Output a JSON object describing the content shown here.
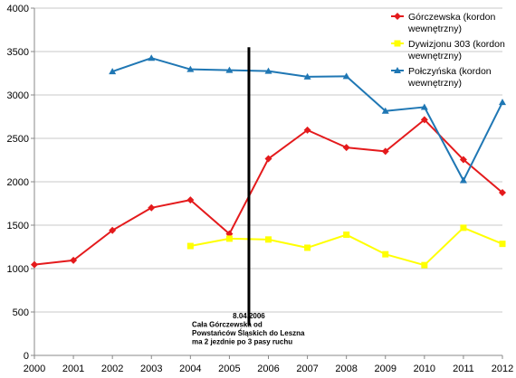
{
  "chart_data": {
    "type": "line",
    "x": [
      2000,
      2001,
      2002,
      2003,
      2004,
      2005,
      2006,
      2007,
      2008,
      2009,
      2010,
      2011,
      2012
    ],
    "ylim": [
      0,
      4000
    ],
    "yticks": [
      0,
      500,
      1000,
      1500,
      2000,
      2500,
      3000,
      3500,
      4000
    ],
    "grid": true,
    "legend_position": "top-right",
    "series": [
      {
        "name_lines": [
          "Górczewska (kordon",
          "wewnętrzny)"
        ],
        "color": "#e41a1c",
        "marker": "diamond",
        "values": [
          1045,
          1095,
          1440,
          1700,
          1790,
          1400,
          2265,
          2595,
          2395,
          2350,
          2715,
          2255,
          1875
        ]
      },
      {
        "name_lines": [
          "Dywizjonu 303 (kordon",
          "wewnętrzny)"
        ],
        "color": "#ffff00",
        "marker": "square",
        "values": [
          null,
          null,
          null,
          null,
          1260,
          1345,
          1335,
          1240,
          1390,
          1165,
          1040,
          1470,
          1285
        ]
      },
      {
        "name_lines": [
          "Połczyńska (kordon",
          "wewnętrzny)"
        ],
        "color": "#1f77b4",
        "marker": "triangle",
        "values": [
          null,
          null,
          3270,
          3425,
          3295,
          3285,
          3275,
          3210,
          3215,
          2815,
          2860,
          2015,
          2915
        ]
      }
    ],
    "annotation": {
      "x": 2005.5,
      "lines": [
        "8.04.2006",
        "Cała Górczewska od",
        "Powstańców Śląskich do Leszna",
        "ma 2 jezdnie po 3 pasy ruchu"
      ]
    }
  }
}
